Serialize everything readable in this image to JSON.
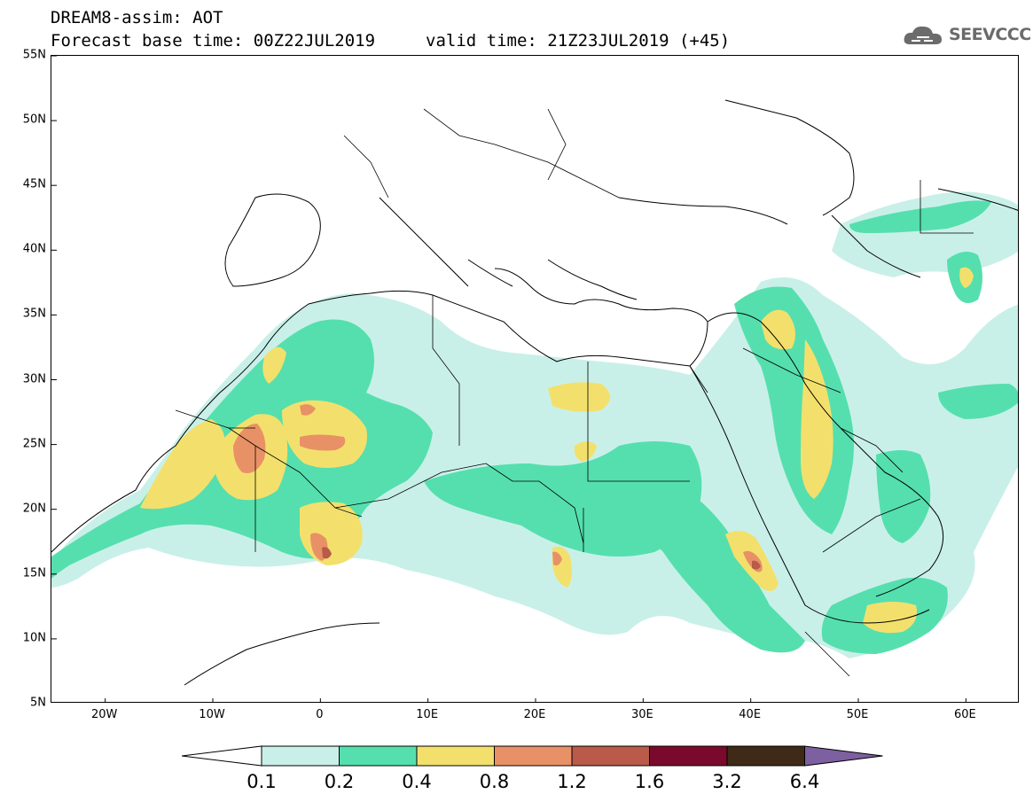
{
  "header": {
    "title": "DREAM8-assim: AOT",
    "base_time": "Forecast base time: 00Z22JUL2019",
    "valid_time": "valid time: 21Z23JUL2019 (+45)"
  },
  "logo": {
    "text": "SEEVCCC",
    "icon": "cloud-icon"
  },
  "map": {
    "lat_range": [
      5,
      55
    ],
    "lon_range": [
      -25,
      65
    ],
    "lat_labels": [
      "55N",
      "50N",
      "45N",
      "40N",
      "35N",
      "30N",
      "25N",
      "20N",
      "15N",
      "10N",
      "5N"
    ],
    "lon_labels": [
      "20W",
      "10W",
      "0",
      "10E",
      "20E",
      "30E",
      "40E",
      "50E",
      "60E"
    ],
    "variable": "AOT"
  },
  "colorbar": {
    "labels": [
      "0.1",
      "0.2",
      "0.4",
      "0.8",
      "1.2",
      "1.6",
      "3.2",
      "6.4"
    ],
    "colors": [
      "#ffffff",
      "#c9f0e8",
      "#55dfae",
      "#f3e06c",
      "#e89166",
      "#b95a4a",
      "#7a0a2b",
      "#3e2a17",
      "#7c60a0"
    ]
  }
}
